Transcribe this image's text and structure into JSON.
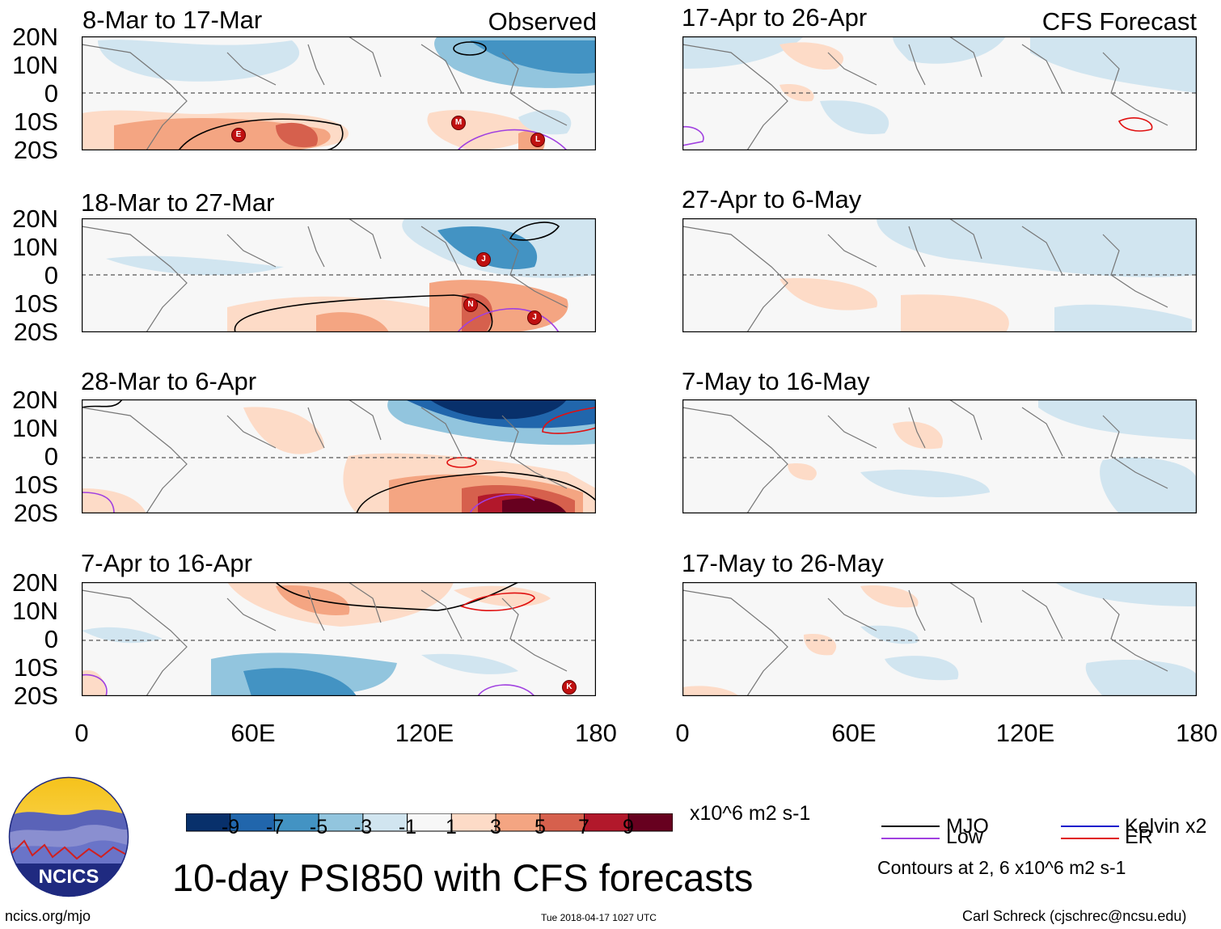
{
  "title": "10-day PSI850 with CFS forecasts",
  "left_column_tag": "Observed",
  "right_column_tag": "CFS Forecast",
  "lat_labels": [
    "20N",
    "10N",
    "0",
    "10S",
    "20S"
  ],
  "lon_labels": [
    "0",
    "60E",
    "120E",
    "180"
  ],
  "panels": [
    {
      "title": "8-Mar to 17-Mar",
      "column": "observed"
    },
    {
      "title": "18-Mar to 27-Mar",
      "column": "observed"
    },
    {
      "title": "28-Mar to 6-Apr",
      "column": "observed"
    },
    {
      "title": "7-Apr to 16-Apr",
      "column": "observed"
    },
    {
      "title": "17-Apr to 26-Apr",
      "column": "forecast"
    },
    {
      "title": "27-Apr to 6-May",
      "column": "forecast"
    },
    {
      "title": "7-May to 16-May",
      "column": "forecast"
    },
    {
      "title": "17-May to 26-May",
      "column": "forecast"
    }
  ],
  "colorbar": {
    "tick_labels": [
      "-9",
      "-7",
      "-5",
      "-3",
      "-1",
      "1",
      "3",
      "5",
      "7",
      "9"
    ],
    "colors": [
      "#08306b",
      "#2166ac",
      "#4393c3",
      "#92c5de",
      "#d1e5f0",
      "#f7f7f7",
      "#fddbc7",
      "#f4a582",
      "#d6604d",
      "#b2182b",
      "#67001f"
    ],
    "units": "x10^6 m2 s-1"
  },
  "legend": {
    "items": [
      {
        "label": "MJO",
        "color": "#000000"
      },
      {
        "label": "Kelvin x2",
        "color": "#1a1acc"
      },
      {
        "label": "Low",
        "color": "#a040e0"
      },
      {
        "label": "ER",
        "color": "#e01010"
      }
    ],
    "contour_note": "Contours at 2, 6 x10^6 m2 s-1"
  },
  "logo_text": "NCICS",
  "footer": {
    "url": "ncics.org/mjo",
    "timestamp": "Tue 2018-04-17 1027 UTC",
    "author": "Carl Schreck (cjschrec@ncsu.edu)"
  },
  "storm_markers": [
    {
      "panel": 0,
      "letter": "E"
    },
    {
      "panel": 0,
      "letter": "M"
    },
    {
      "panel": 0,
      "letter": "L"
    },
    {
      "panel": 1,
      "letter": "J"
    },
    {
      "panel": 1,
      "letter": "N"
    },
    {
      "panel": 1,
      "letter": "J"
    },
    {
      "panel": 3,
      "letter": "K"
    }
  ]
}
